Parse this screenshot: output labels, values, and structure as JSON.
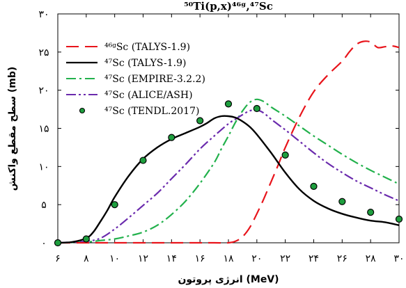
{
  "chart_data": {
    "type": "line",
    "title": "⁵⁰Ti(p,x)⁴⁶ᵍ,⁴⁷Sc",
    "xlabel": "انرژی پروتون (MeV)",
    "ylabel": "سطح مقطع واکنش (mb)",
    "xlim": [
      6,
      30
    ],
    "ylim": [
      0,
      30
    ],
    "x_ticks": [
      6,
      8,
      10,
      12,
      14,
      16,
      18,
      20,
      22,
      24,
      26,
      28,
      30
    ],
    "y_ticks": [
      0,
      5,
      10,
      15,
      20,
      25,
      30
    ],
    "x_tick_labels": [
      "۶",
      "۸",
      "۱۰",
      "۱۲",
      "۱۴",
      "۱۶",
      "۱۸",
      "۲۰",
      "۲۲",
      "۲۴",
      "۲۶",
      "۲۸",
      "۳۰"
    ],
    "y_tick_labels": [
      "۰",
      "۵",
      "۱۰",
      "۱۵",
      "۲۰",
      "۲۵",
      "۳۰"
    ],
    "legend_position": "top-left",
    "grid": false,
    "series": [
      {
        "name": "⁴⁶ᵍSc (TALYS-1.9)",
        "style": "dashed",
        "color": "#e8141b",
        "x": [
          6,
          8,
          10,
          12,
          14,
          16,
          17,
          18,
          18.5,
          19,
          19.5,
          20,
          20.5,
          21,
          21.5,
          22,
          23,
          24,
          25,
          26,
          26.5,
          27,
          27.5,
          28,
          28.5,
          29,
          29.5,
          30
        ],
        "y": [
          0,
          0,
          0,
          0,
          0,
          0,
          0,
          0,
          0.2,
          0.8,
          2.0,
          3.8,
          5.8,
          8.0,
          10.2,
          12.5,
          16.5,
          19.8,
          22.0,
          23.8,
          25.0,
          26.0,
          26.4,
          26.3,
          25.6,
          25.7,
          25.8,
          25.6
        ]
      },
      {
        "name": "⁴⁷Sc (TALYS-1.9)",
        "style": "solid",
        "color": "#000000",
        "x": [
          6,
          7,
          8,
          8.5,
          9,
          9.5,
          10,
          11,
          12,
          13,
          14,
          15,
          16,
          16.5,
          17,
          17.5,
          18,
          18.5,
          19,
          19.5,
          20,
          21,
          22,
          23,
          24,
          25,
          26,
          27,
          28,
          29,
          30
        ],
        "y": [
          0,
          0.1,
          0.6,
          1.4,
          2.8,
          4.3,
          6.0,
          8.8,
          11.0,
          12.5,
          13.6,
          14.4,
          15.2,
          15.7,
          16.3,
          16.6,
          16.6,
          16.4,
          15.9,
          15.2,
          14.2,
          11.8,
          9.2,
          7.0,
          5.5,
          4.5,
          3.8,
          3.3,
          2.9,
          2.7,
          2.3
        ]
      },
      {
        "name": "⁴⁷Sc (EMPIRE-3.2.2)",
        "style": "dashdot",
        "color": "#22b14c",
        "x": [
          6,
          8,
          9,
          10,
          11,
          12,
          13,
          14,
          15,
          16,
          17,
          17.5,
          18,
          18.5,
          19,
          19.5,
          20,
          20.5,
          21,
          22,
          23,
          24,
          25,
          26,
          27,
          28,
          29,
          30
        ],
        "y": [
          0,
          0.1,
          0.3,
          0.5,
          0.9,
          1.4,
          2.3,
          3.7,
          5.5,
          7.8,
          10.5,
          12.3,
          14.0,
          15.8,
          17.3,
          18.4,
          18.8,
          18.5,
          17.8,
          16.6,
          15.3,
          14.0,
          12.8,
          11.6,
          10.5,
          9.5,
          8.6,
          7.7
        ]
      },
      {
        "name": "⁴⁷Sc (ALICE/ASH)",
        "style": "dashdotdot",
        "color": "#6a2aad",
        "x": [
          6,
          8,
          9,
          10,
          11,
          12,
          13,
          14,
          15,
          16,
          17,
          18,
          18.5,
          19,
          19.5,
          20,
          20.5,
          21,
          22,
          23,
          24,
          25,
          26,
          27,
          28,
          29,
          30
        ],
        "y": [
          0,
          0.2,
          0.6,
          1.8,
          3.3,
          4.9,
          6.5,
          8.4,
          10.3,
          12.3,
          14.0,
          15.6,
          16.2,
          16.8,
          17.3,
          17.4,
          17.0,
          16.2,
          14.8,
          13.3,
          11.8,
          10.4,
          9.2,
          8.1,
          7.2,
          6.3,
          5.5
        ]
      },
      {
        "name": "⁴⁷Sc (TENDL.2017)",
        "style": "markers",
        "color": "#1e9e3e",
        "x": [
          6,
          8,
          10,
          12,
          14,
          16,
          18,
          20,
          22,
          24,
          26,
          28,
          30
        ],
        "y": [
          0,
          0.5,
          5.0,
          10.8,
          13.8,
          16.0,
          18.2,
          17.6,
          11.5,
          7.4,
          5.4,
          4.0,
          3.1
        ]
      }
    ]
  }
}
